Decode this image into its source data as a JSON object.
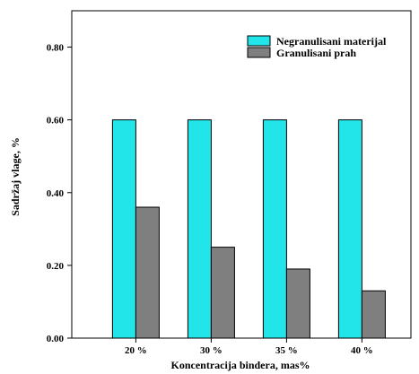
{
  "chart_data": {
    "type": "bar",
    "categories": [
      "20 %",
      "30 %",
      "35 %",
      "40 %"
    ],
    "series": [
      {
        "name": "Negranulisani materijal",
        "values": [
          0.6,
          0.6,
          0.6,
          0.6
        ],
        "color": "#22e5ea"
      },
      {
        "name": "Granulisani prah",
        "values": [
          0.36,
          0.25,
          0.19,
          0.13
        ],
        "color": "#7f7f7f"
      }
    ],
    "title": "",
    "xlabel": "Koncentracija bindera, mas%",
    "ylabel": "Sadržaj vlage, %",
    "ylim": [
      0,
      0.9
    ],
    "yticks": [
      "0.00",
      "0.20",
      "0.40",
      "0.60",
      "0.80"
    ],
    "legend_position": "top-right",
    "grid": false
  }
}
